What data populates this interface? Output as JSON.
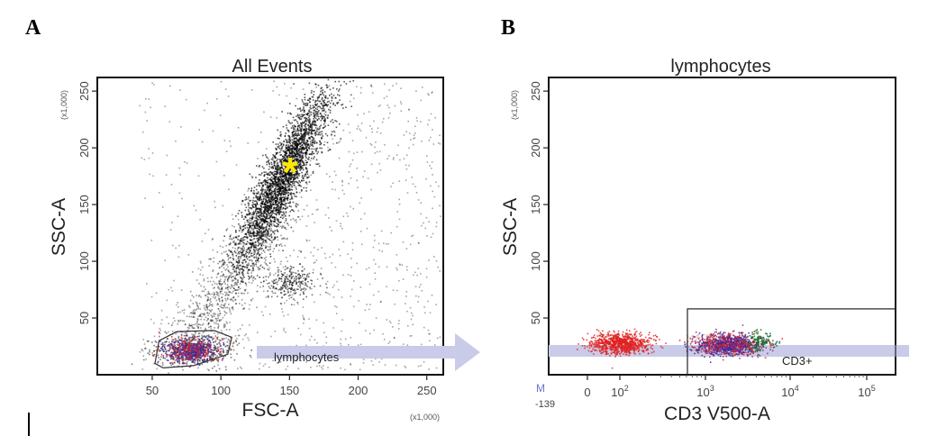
{
  "chart_data": [
    {
      "panel": "A",
      "type": "scatter",
      "title": "All Events",
      "xlabel": "FSC-A",
      "ylabel": "SSC-A",
      "x_unit": "(x1,000)",
      "y_unit": "(x1,000)",
      "xlim": [
        10,
        262
      ],
      "ylim": [
        0,
        262
      ],
      "xticks": [
        50,
        100,
        150,
        200,
        250
      ],
      "yticks": [
        50,
        100,
        150,
        200,
        250
      ],
      "populations": [
        {
          "kind": "main",
          "center": [
            145,
            175
          ],
          "count": 2800,
          "color": "#000000"
        },
        {
          "kind": "secondary",
          "center": [
            150,
            82
          ],
          "count": 250,
          "color": "#000000"
        },
        {
          "kind": "lymphocytes",
          "center": [
            78,
            22
          ],
          "count": 600,
          "colors": [
            "#2b2ba8",
            "#d02020",
            "#7d2a8a"
          ]
        },
        {
          "kind": "background",
          "count": 1100,
          "color": "#000000"
        }
      ],
      "annotation": {
        "symbol": "*",
        "color": "#ffe800",
        "x": 145,
        "y": 180
      },
      "gate": {
        "name": "lymphocytes"
      }
    },
    {
      "panel": "B",
      "type": "scatter",
      "title": "lymphocytes",
      "xlabel": "CD3 V500-A",
      "ylabel": "SSC-A",
      "y_unit": "(x1,000)",
      "xscale": "biexponential",
      "ylim": [
        0,
        262
      ],
      "yticks": [
        50,
        100,
        150,
        200,
        250
      ],
      "x_origin_label": "M",
      "x_origin_value": "-139",
      "xticks": [
        {
          "base": "0",
          "exp": ""
        },
        {
          "base": "10",
          "exp": "2"
        },
        {
          "base": "10",
          "exp": "3"
        },
        {
          "base": "10",
          "exp": "4"
        },
        {
          "base": "10",
          "exp": "5"
        }
      ],
      "populations": [
        {
          "kind": "CD3-",
          "center_log": 2.05,
          "y": 28,
          "count": 900,
          "color": "#e02020"
        },
        {
          "kind": "CD3+",
          "center_log": 3.2,
          "y": 27,
          "count": 1100,
          "colors": [
            "#2b2ba8",
            "#d02020",
            "#7d2a8a",
            "#1a6b2a"
          ]
        }
      ],
      "gate": {
        "name": "CD3+",
        "x_log": [
          2.75,
          5.3
        ],
        "ylim": [
          0,
          58
        ]
      }
    }
  ],
  "panels": {
    "a": {
      "letter": "A"
    },
    "b": {
      "letter": "B"
    }
  },
  "colors": {
    "arrow": "#c9cbe8",
    "cursor": "#000000"
  }
}
